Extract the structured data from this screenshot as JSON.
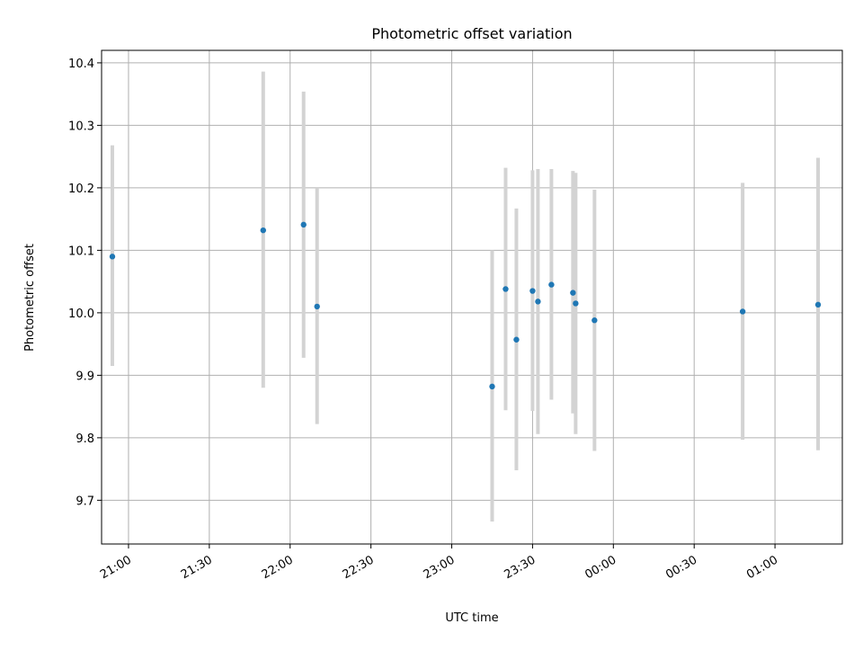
{
  "chart_data": {
    "type": "scatter",
    "title": "Photometric offset variation",
    "xlabel": "UTC time",
    "ylabel": "Photometric offset",
    "x_axis_kind": "time",
    "xlim": [
      "20:50",
      "01:25"
    ],
    "ylim": [
      9.63,
      10.42
    ],
    "grid": true,
    "x_ticks": [
      "21:00",
      "21:30",
      "22:00",
      "22:30",
      "23:00",
      "23:30",
      "00:00",
      "00:30",
      "01:00"
    ],
    "y_ticks": [
      "9.7",
      "9.8",
      "9.9",
      "10.0",
      "10.1",
      "10.2",
      "10.3",
      "10.4"
    ],
    "colors": {
      "points": "#1f77b4",
      "errorbars": "#d3d3d3",
      "grid": "#b0b0b0"
    },
    "points": [
      {
        "x": "20:54",
        "y": 10.09,
        "lo": 9.915,
        "hi": 10.268
      },
      {
        "x": "21:50",
        "y": 10.132,
        "lo": 9.88,
        "hi": 10.386
      },
      {
        "x": "22:05",
        "y": 10.141,
        "lo": 9.928,
        "hi": 10.354
      },
      {
        "x": "22:10",
        "y": 10.01,
        "lo": 9.822,
        "hi": 10.2
      },
      {
        "x": "23:15",
        "y": 9.882,
        "lo": 9.666,
        "hi": 10.1
      },
      {
        "x": "23:20",
        "y": 10.038,
        "lo": 9.844,
        "hi": 10.232
      },
      {
        "x": "23:24",
        "y": 9.957,
        "lo": 9.748,
        "hi": 10.167
      },
      {
        "x": "23:30",
        "y": 10.035,
        "lo": 9.843,
        "hi": 10.228
      },
      {
        "x": "23:32",
        "y": 10.018,
        "lo": 9.806,
        "hi": 10.23
      },
      {
        "x": "23:37",
        "y": 10.045,
        "lo": 9.861,
        "hi": 10.23
      },
      {
        "x": "23:45",
        "y": 10.032,
        "lo": 9.839,
        "hi": 10.227
      },
      {
        "x": "23:46",
        "y": 10.015,
        "lo": 9.806,
        "hi": 10.224
      },
      {
        "x": "23:53",
        "y": 9.988,
        "lo": 9.779,
        "hi": 10.197
      },
      {
        "x": "00:48",
        "y": 10.002,
        "lo": 9.797,
        "hi": 10.208
      },
      {
        "x": "01:16",
        "y": 10.013,
        "lo": 9.78,
        "hi": 10.248
      }
    ]
  }
}
